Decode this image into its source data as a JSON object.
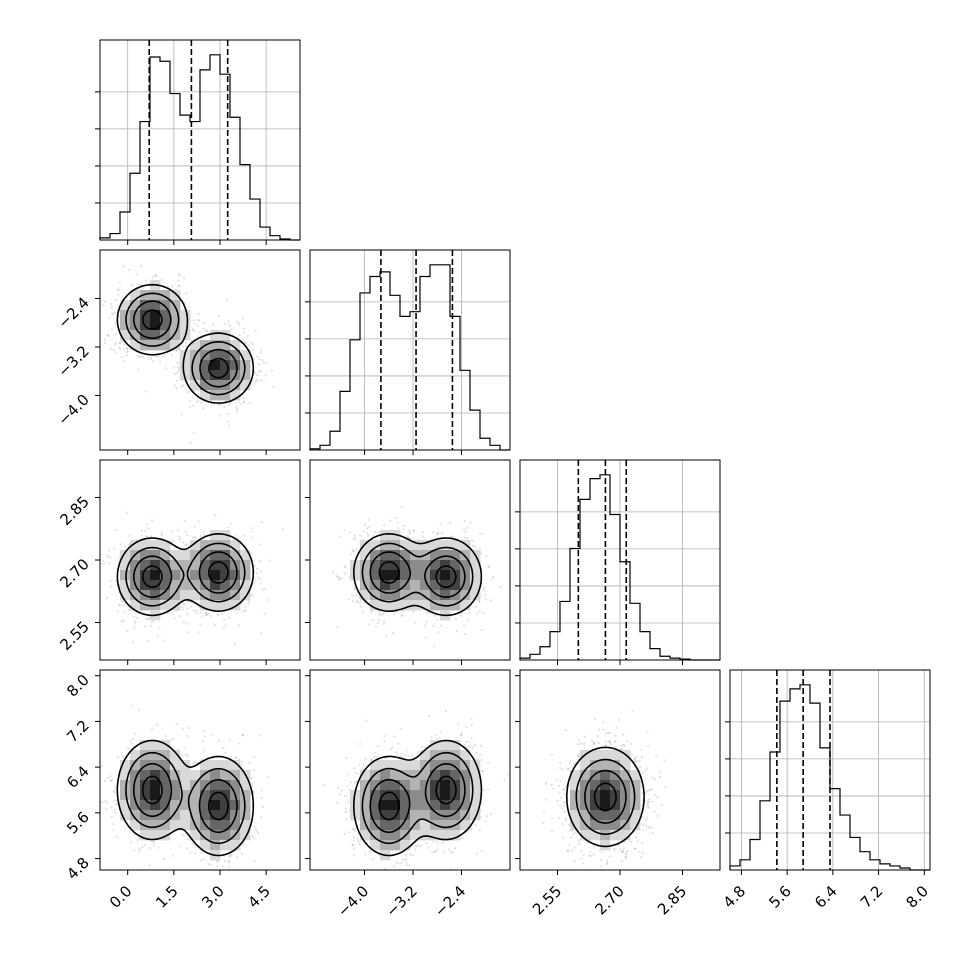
{
  "chart_data": {
    "type": "corner",
    "parameters": [
      {
        "range": [
          -0.9,
          5.6
        ],
        "ticks": [
          0.0,
          1.5,
          3.0,
          4.5
        ],
        "tick_labels": [
          "0.0",
          "1.5",
          "3.0",
          "4.5"
        ],
        "quantiles": [
          0.7,
          2.07,
          3.25
        ],
        "modes": [
          {
            "mu": 0.8,
            "sd": 0.55,
            "w": 0.5
          },
          {
            "mu": 2.95,
            "sd": 0.55,
            "w": 0.5
          }
        ],
        "histogram": {
          "edges": [
            -0.9,
            -0.575,
            -0.25,
            0.075,
            0.4,
            0.725,
            1.05,
            1.375,
            1.7,
            2.025,
            2.35,
            2.675,
            3.0,
            3.325,
            3.65,
            3.975,
            4.3,
            4.625,
            4.95,
            5.275,
            5.6
          ],
          "counts": [
            0.01,
            0.03,
            0.13,
            0.31,
            0.55,
            0.85,
            0.83,
            0.68,
            0.58,
            0.55,
            0.79,
            0.86,
            0.77,
            0.57,
            0.35,
            0.19,
            0.06,
            0.02,
            0.005,
            0.0
          ]
        }
      },
      {
        "range": [
          -4.9,
          -1.6
        ],
        "ticks": [
          -4.0,
          -3.2,
          -2.4
        ],
        "tick_labels": [
          "−4.0",
          "−3.2",
          "−2.4"
        ],
        "quantiles": [
          -3.73,
          -3.15,
          -2.55
        ],
        "modes": [
          {
            "mu": -3.6,
            "sd": 0.28,
            "w": 0.5
          },
          {
            "mu": -2.65,
            "sd": 0.28,
            "w": 0.5
          }
        ],
        "histogram": {
          "edges": [
            -4.9,
            -4.735,
            -4.57,
            -4.405,
            -4.24,
            -4.075,
            -3.91,
            -3.745,
            -3.58,
            -3.415,
            -3.25,
            -3.085,
            -2.92,
            -2.755,
            -2.59,
            -2.425,
            -2.26,
            -2.095,
            -1.93,
            -1.765,
            -1.6
          ],
          "counts": [
            0.005,
            0.02,
            0.08,
            0.25,
            0.47,
            0.67,
            0.74,
            0.76,
            0.66,
            0.57,
            0.59,
            0.74,
            0.79,
            0.79,
            0.57,
            0.34,
            0.17,
            0.05,
            0.02,
            0.0
          ]
        }
      },
      {
        "range": [
          2.46,
          2.94
        ],
        "ticks": [
          2.55,
          2.7,
          2.85
        ],
        "tick_labels": [
          "2.55",
          "2.70",
          "2.85"
        ],
        "quantiles": [
          2.6,
          2.665,
          2.715
        ],
        "modes": [
          {
            "mu": 2.665,
            "sd": 0.045,
            "w": 1.0
          }
        ],
        "histogram": {
          "edges": [
            2.46,
            2.484,
            2.508,
            2.532,
            2.556,
            2.58,
            2.604,
            2.628,
            2.652,
            2.676,
            2.7,
            2.724,
            2.748,
            2.772,
            2.796,
            2.82,
            2.844,
            2.868,
            2.892,
            2.916,
            2.94
          ],
          "counts": [
            0.01,
            0.03,
            0.07,
            0.15,
            0.31,
            0.59,
            0.85,
            0.96,
            0.98,
            0.77,
            0.52,
            0.3,
            0.15,
            0.06,
            0.02,
            0.01,
            0.005,
            0.0,
            0.0,
            0.0
          ]
        }
      },
      {
        "range": [
          4.6,
          8.1
        ],
        "ticks": [
          4.8,
          5.6,
          6.4,
          7.2,
          8.0
        ],
        "tick_labels": [
          "4.8",
          "5.6",
          "6.4",
          "7.2",
          "8.0"
        ],
        "quantiles": [
          5.42,
          5.88,
          6.35
        ],
        "modes": [
          {
            "mu": 5.88,
            "sd": 0.42,
            "w": 1.0
          }
        ],
        "histogram": {
          "edges": [
            4.6,
            4.775,
            4.95,
            5.125,
            5.3,
            5.475,
            5.65,
            5.825,
            6.0,
            6.175,
            6.35,
            6.525,
            6.7,
            6.875,
            7.05,
            7.225,
            7.4,
            7.575,
            7.75,
            7.925,
            8.1
          ],
          "counts": [
            0.02,
            0.05,
            0.15,
            0.34,
            0.58,
            0.83,
            0.89,
            0.91,
            0.82,
            0.6,
            0.4,
            0.27,
            0.16,
            0.09,
            0.05,
            0.03,
            0.02,
            0.01,
            0.0,
            0.0
          ]
        }
      }
    ],
    "pairs": [
      {
        "row": 1,
        "col": 0,
        "modes": [
          {
            "mx": 0.8,
            "my": -2.75,
            "sx": 0.55,
            "sy": 0.28,
            "rho": 0.0
          },
          {
            "mx": 2.95,
            "my": -3.55,
            "sx": 0.55,
            "sy": 0.28,
            "rho": 0.0
          }
        ]
      },
      {
        "row": 2,
        "col": 0,
        "modes": [
          {
            "mx": 0.8,
            "my": 2.66,
            "sx": 0.55,
            "sy": 0.045,
            "rho": 0.0
          },
          {
            "mx": 2.95,
            "my": 2.67,
            "sx": 0.55,
            "sy": 0.045,
            "rho": 0.0
          }
        ]
      },
      {
        "row": 2,
        "col": 1,
        "modes": [
          {
            "mx": -3.6,
            "my": 2.67,
            "sx": 0.28,
            "sy": 0.045,
            "rho": 0.0
          },
          {
            "mx": -2.65,
            "my": 2.66,
            "sx": 0.28,
            "sy": 0.045,
            "rho": 0.0
          }
        ]
      },
      {
        "row": 3,
        "col": 0,
        "modes": [
          {
            "mx": 0.8,
            "my": 6.0,
            "sx": 0.55,
            "sy": 0.42,
            "rho": 0.0
          },
          {
            "mx": 2.95,
            "my": 5.72,
            "sx": 0.55,
            "sy": 0.42,
            "rho": 0.0
          }
        ]
      },
      {
        "row": 3,
        "col": 1,
        "modes": [
          {
            "mx": -3.6,
            "my": 5.72,
            "sx": 0.28,
            "sy": 0.42,
            "rho": 0.0
          },
          {
            "mx": -2.65,
            "my": 6.0,
            "sx": 0.28,
            "sy": 0.42,
            "rho": 0.0
          }
        ]
      },
      {
        "row": 3,
        "col": 2,
        "modes": [
          {
            "mx": 2.665,
            "my": 5.88,
            "sx": 0.045,
            "sy": 0.42,
            "rho": 0.0
          }
        ]
      }
    ],
    "grid": true,
    "contour_levels": [
      0.12,
      0.3,
      0.55,
      0.85
    ],
    "density_colors": [
      "#ffffff",
      "#d9d9d9",
      "#b3b3b3",
      "#8c8c8c",
      "#666666",
      "#404040",
      "#1a1a1a"
    ]
  }
}
